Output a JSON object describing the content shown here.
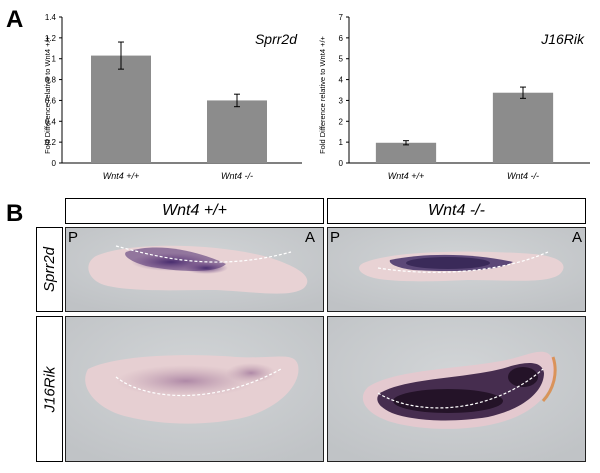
{
  "panel_labels": {
    "a": "A",
    "b": "B"
  },
  "chart_data": [
    {
      "type": "bar",
      "title": "Sprr2d",
      "ylabel": "Fold Difference relative to Wnt4 +/+",
      "categories": [
        "Wnt4 +/+",
        "Wnt4 -/-"
      ],
      "values": [
        1.03,
        0.6
      ],
      "errors": [
        0.13,
        0.06
      ],
      "ylim": [
        0,
        1.4
      ],
      "yticks": [
        "0",
        "0.2",
        "0.4",
        "0.6",
        "0.8",
        "1",
        "1.2",
        "1.4"
      ],
      "bar_color": "#8c8c8c",
      "grid": false
    },
    {
      "type": "bar",
      "title": "J16Rik",
      "ylabel": "Fold Difference relative to Wnt4 +/+",
      "categories": [
        "Wnt4 +/+",
        "Wnt4 -/-"
      ],
      "values": [
        0.97,
        3.37
      ],
      "errors": [
        0.1,
        0.27
      ],
      "ylim": [
        0,
        7
      ],
      "yticks": [
        "0",
        "1",
        "2",
        "3",
        "4",
        "5",
        "6",
        "7"
      ],
      "bar_color": "#8c8c8c",
      "grid": false
    }
  ],
  "panel_b": {
    "columns": [
      "Wnt4 +/+",
      "Wnt4 -/-"
    ],
    "rows": [
      "Sprr2d",
      "J16Rik"
    ],
    "orientation": {
      "left": "P",
      "right": "A"
    },
    "colors": {
      "tissue": "#ecd4d4",
      "stain": "#3a1f66",
      "background": "#c9ccce"
    }
  }
}
